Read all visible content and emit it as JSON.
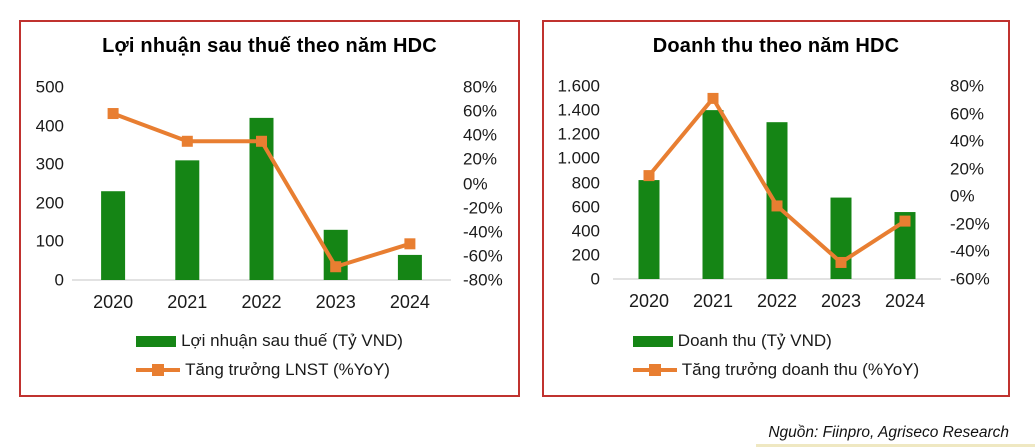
{
  "source_note": "Nguồn: Fiinpro, Agriseco Research",
  "colors": {
    "bar_green": "#158515",
    "line_orange": "#e87e31",
    "panel_border": "#c0322f",
    "baseline": "#d9d9d9",
    "text": "#1a1a1a"
  },
  "chart_data": [
    {
      "type": "bar",
      "combo": "bar+line",
      "title": "Lợi nhuận sau thuế theo năm HDC",
      "categories": [
        "2020",
        "2021",
        "2022",
        "2023",
        "2024"
      ],
      "series": [
        {
          "name": "Lợi nhuận sau thuế (Tỷ VND)",
          "type": "bar",
          "axis": "left",
          "values": [
            230,
            310,
            420,
            130,
            65
          ]
        },
        {
          "name": "Tăng trưởng LNST (%YoY)",
          "type": "line",
          "axis": "right",
          "values": [
            58,
            35,
            35,
            -69,
            -50
          ]
        }
      ],
      "left_axis": {
        "min": 0,
        "max": 500,
        "step": 100,
        "tick_labels": [
          "500",
          "400",
          "300",
          "200",
          "100",
          "0"
        ]
      },
      "right_axis": {
        "min": -80,
        "max": 80,
        "step": 20,
        "tick_labels": [
          "80%",
          "60%",
          "40%",
          "20%",
          "0%",
          "-20%",
          "-40%",
          "-60%",
          "-80%"
        ]
      },
      "legend_position": "bottom",
      "grid": false
    },
    {
      "type": "bar",
      "combo": "bar+line",
      "title": "Doanh thu theo năm HDC",
      "categories": [
        "2020",
        "2021",
        "2022",
        "2023",
        "2024"
      ],
      "series": [
        {
          "name": "Doanh thu (Tỷ VND)",
          "type": "bar",
          "axis": "left",
          "values": [
            820,
            1400,
            1300,
            675,
            555
          ]
        },
        {
          "name": "Tăng trưởng doanh thu (%YoY)",
          "type": "line",
          "axis": "right",
          "values": [
            15,
            71,
            -7,
            -48,
            -18
          ]
        }
      ],
      "left_axis": {
        "min": 0,
        "max": 1600,
        "step": 200,
        "tick_labels": [
          "1.600",
          "1.400",
          "1.200",
          "1.000",
          "800",
          "600",
          "400",
          "200",
          "0"
        ]
      },
      "right_axis": {
        "min": -60,
        "max": 80,
        "step": 20,
        "tick_labels": [
          "80%",
          "60%",
          "40%",
          "20%",
          "0%",
          "-20%",
          "-40%",
          "-60%"
        ]
      },
      "legend_position": "bottom",
      "grid": false
    }
  ]
}
